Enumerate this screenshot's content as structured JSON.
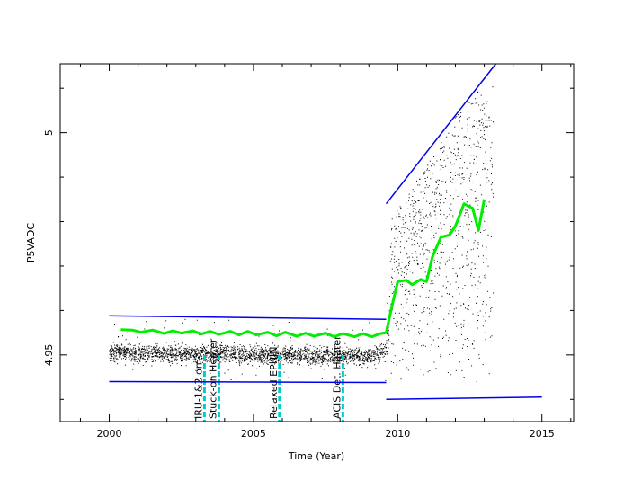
{
  "chart_data": {
    "type": "scatter",
    "title": "",
    "xlabel": "Time (Year)",
    "ylabel": "P5VADC",
    "xlim": [
      1998.3,
      2016.1
    ],
    "ylim": [
      4.935,
      5.0155
    ],
    "x_ticks": [
      2000,
      2005,
      2010,
      2015
    ],
    "x_tick_labels": [
      "2000",
      "2005",
      "2010",
      "2015"
    ],
    "y_ticks": [
      4.95,
      5.0
    ],
    "y_tick_labels": [
      "4.95",
      "5"
    ],
    "grid": false,
    "legend": "none",
    "events": [
      {
        "x": 2003.3,
        "label": "IRU-1&2 on"
      },
      {
        "x": 2003.8,
        "label": "Stuck-on Heater"
      },
      {
        "x": 2005.9,
        "label": "Relaxed EPHIN"
      },
      {
        "x": 2008.1,
        "label": "ACIS Det. Heater"
      }
    ],
    "scatter_envelope": [
      {
        "x": 2000.0,
        "low": 4.9448,
        "high": 4.9566
      },
      {
        "x": 2001.0,
        "low": 4.9445,
        "high": 4.9566
      },
      {
        "x": 2002.0,
        "low": 4.9443,
        "high": 4.9565
      },
      {
        "x": 2003.0,
        "low": 4.9442,
        "high": 4.9563
      },
      {
        "x": 2004.0,
        "low": 4.9443,
        "high": 4.9566
      },
      {
        "x": 2005.0,
        "low": 4.9441,
        "high": 4.956
      },
      {
        "x": 2006.0,
        "low": 4.944,
        "high": 4.9563
      },
      {
        "x": 2007.0,
        "low": 4.944,
        "high": 4.9558
      },
      {
        "x": 2008.0,
        "low": 4.944,
        "high": 4.956
      },
      {
        "x": 2009.0,
        "low": 4.944,
        "high": 4.9558
      },
      {
        "x": 2009.6,
        "low": 4.944,
        "high": 4.958
      },
      {
        "x": 2009.8,
        "low": 4.945,
        "high": 4.982
      },
      {
        "x": 2010.5,
        "low": 4.943,
        "high": 4.988
      },
      {
        "x": 2011.0,
        "low": 4.943,
        "high": 4.993
      },
      {
        "x": 2011.5,
        "low": 4.9425,
        "high": 4.998
      },
      {
        "x": 2012.0,
        "low": 4.942,
        "high": 5.005
      },
      {
        "x": 2012.5,
        "low": 4.942,
        "high": 5.008
      },
      {
        "x": 2013.0,
        "low": 4.942,
        "high": 5.011
      },
      {
        "x": 2013.3,
        "low": 4.942,
        "high": 5.011
      }
    ],
    "series": [
      {
        "color": "#00ee00",
        "x": [
          2000.4,
          2000.8,
          2001.1,
          2001.5,
          2001.9,
          2002.2,
          2002.5,
          2002.9,
          2003.2,
          2003.5,
          2003.8,
          2004.2,
          2004.5,
          2004.8,
          2005.1,
          2005.5,
          2005.8,
          2006.1,
          2006.5,
          2006.8,
          2007.1,
          2007.5,
          2007.8,
          2008.1,
          2008.5,
          2008.8,
          2009.1,
          2009.4,
          2009.6,
          2009.8,
          2010.0,
          2010.3,
          2010.5,
          2010.8,
          2011.0,
          2011.2,
          2011.5,
          2011.8,
          2012.0,
          2012.3,
          2012.6,
          2012.8,
          2013.0
        ],
        "y": [
          4.9557,
          4.9556,
          4.9551,
          4.9556,
          4.9548,
          4.9554,
          4.9549,
          4.9554,
          4.9547,
          4.9553,
          4.9546,
          4.9553,
          4.9545,
          4.9553,
          4.9545,
          4.9551,
          4.9543,
          4.9551,
          4.9542,
          4.9549,
          4.9542,
          4.9549,
          4.9541,
          4.9548,
          4.9541,
          4.9548,
          4.9541,
          4.9548,
          4.955,
          4.961,
          4.9665,
          4.9668,
          4.9658,
          4.967,
          4.9665,
          4.972,
          4.9765,
          4.977,
          4.979,
          4.984,
          4.983,
          4.978,
          4.985
        ]
      },
      {
        "color": "#0000ee",
        "x": [
          2000.0,
          2009.6
        ],
        "y": [
          4.9588,
          4.958
        ]
      },
      {
        "color": "#0000ee",
        "x": [
          2000.0,
          2009.6
        ],
        "y": [
          4.944,
          4.9438
        ]
      },
      {
        "color": "#0000ee",
        "x": [
          2009.6,
          2013.4
        ],
        "y": [
          4.984,
          5.0155
        ]
      },
      {
        "color": "#0000ee",
        "x": [
          2009.6,
          2015.0
        ],
        "y": [
          4.94,
          4.9405
        ]
      }
    ]
  }
}
